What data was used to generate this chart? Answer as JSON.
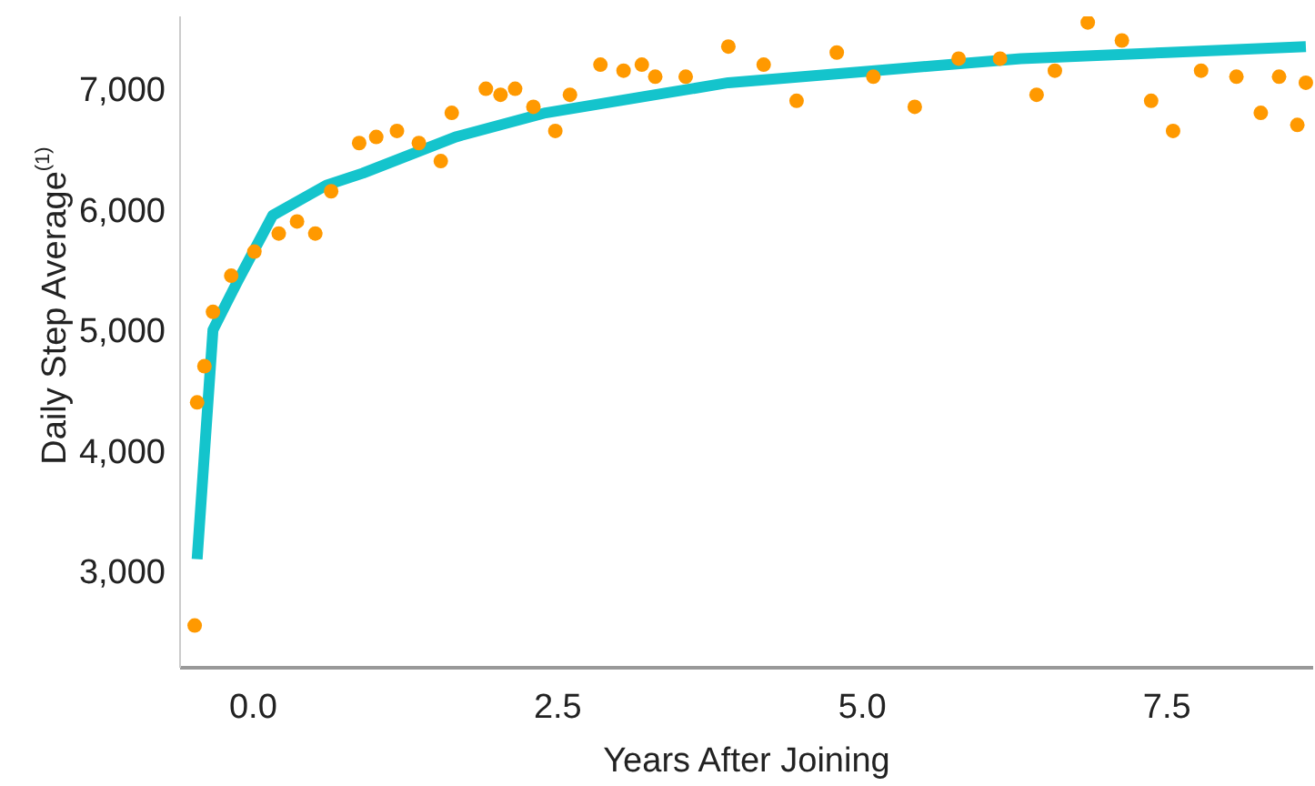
{
  "chart_data": {
    "type": "scatter",
    "xlabel": "Years After Joining",
    "ylabel": "Daily  Step  Average$^{(1)}$",
    "xlim": [
      -0.6,
      8.7
    ],
    "ylim": [
      2200,
      7600
    ],
    "xticks": [
      {
        "value": 0,
        "label": "0.0"
      },
      2.5,
      {
        "value": 5,
        "label": "5.0"
      },
      7.5
    ],
    "yticks": [
      {
        "value": 3000,
        "label": "3,000"
      },
      {
        "value": 4000,
        "label": "4,000"
      },
      {
        "value": 5000,
        "label": "5,000"
      },
      {
        "value": 6000,
        "label": "6,000"
      },
      {
        "value": 7000,
        "label": "7,000"
      }
    ],
    "grid": false,
    "legend": false,
    "marker": "circle",
    "series": [
      {
        "color": "#ff9900",
        "x": [
          -0.48,
          -0.46,
          -0.4,
          -0.33,
          -0.18,
          0.01,
          0.21,
          0.36,
          0.51,
          0.64,
          0.87,
          1.01,
          1.18,
          1.36,
          1.54,
          1.63,
          1.91,
          2.03,
          2.15,
          2.3,
          2.48,
          2.6,
          2.85,
          3.04,
          3.19,
          3.3,
          3.55,
          3.9,
          4.19,
          4.46,
          4.79,
          5.09,
          5.43,
          5.79,
          6.13,
          6.43,
          6.58,
          6.85,
          7.13,
          7.37,
          7.55,
          7.78,
          8.07,
          8.27,
          8.42,
          8.57,
          8.64
        ],
        "values": [
          2550,
          4400,
          4700,
          5150,
          5450,
          5650,
          5800,
          5900,
          5800,
          6150,
          6550,
          6600,
          6650,
          6550,
          6400,
          6800,
          7000,
          6950,
          7000,
          6850,
          6650,
          6950,
          7200,
          7150,
          7200,
          7100,
          7100,
          7350,
          7200,
          6900,
          7300,
          7100,
          6850,
          7250,
          7250,
          6950,
          7150,
          7550,
          7400,
          6900,
          6650,
          7150,
          7100,
          6800,
          7100,
          6700,
          7050
        ]
      },
      {
        "type": "line",
        "color": "#14c4cc",
        "marker": "none",
        "x": [
          -0.46,
          -0.33,
          -0.13,
          0.16,
          0.6,
          0.9,
          1.66,
          2.4,
          3.3,
          3.9,
          5.1,
          6.3,
          7.5,
          8.64
        ],
        "values": [
          3100,
          5000,
          5400,
          5950,
          6200,
          6300,
          6600,
          6800,
          6950,
          7050,
          7150,
          7250,
          7300,
          7350
        ]
      }
    ]
  }
}
